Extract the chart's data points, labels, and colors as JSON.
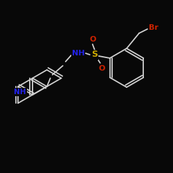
{
  "background_color": "#080808",
  "bond_color": "#d0d0d0",
  "colors": {
    "N": "#2222ee",
    "O": "#cc2200",
    "S": "#ccaa00",
    "Br": "#cc2200",
    "C": "#d0d0d0"
  },
  "figsize": [
    2.5,
    2.5
  ],
  "dpi": 100
}
